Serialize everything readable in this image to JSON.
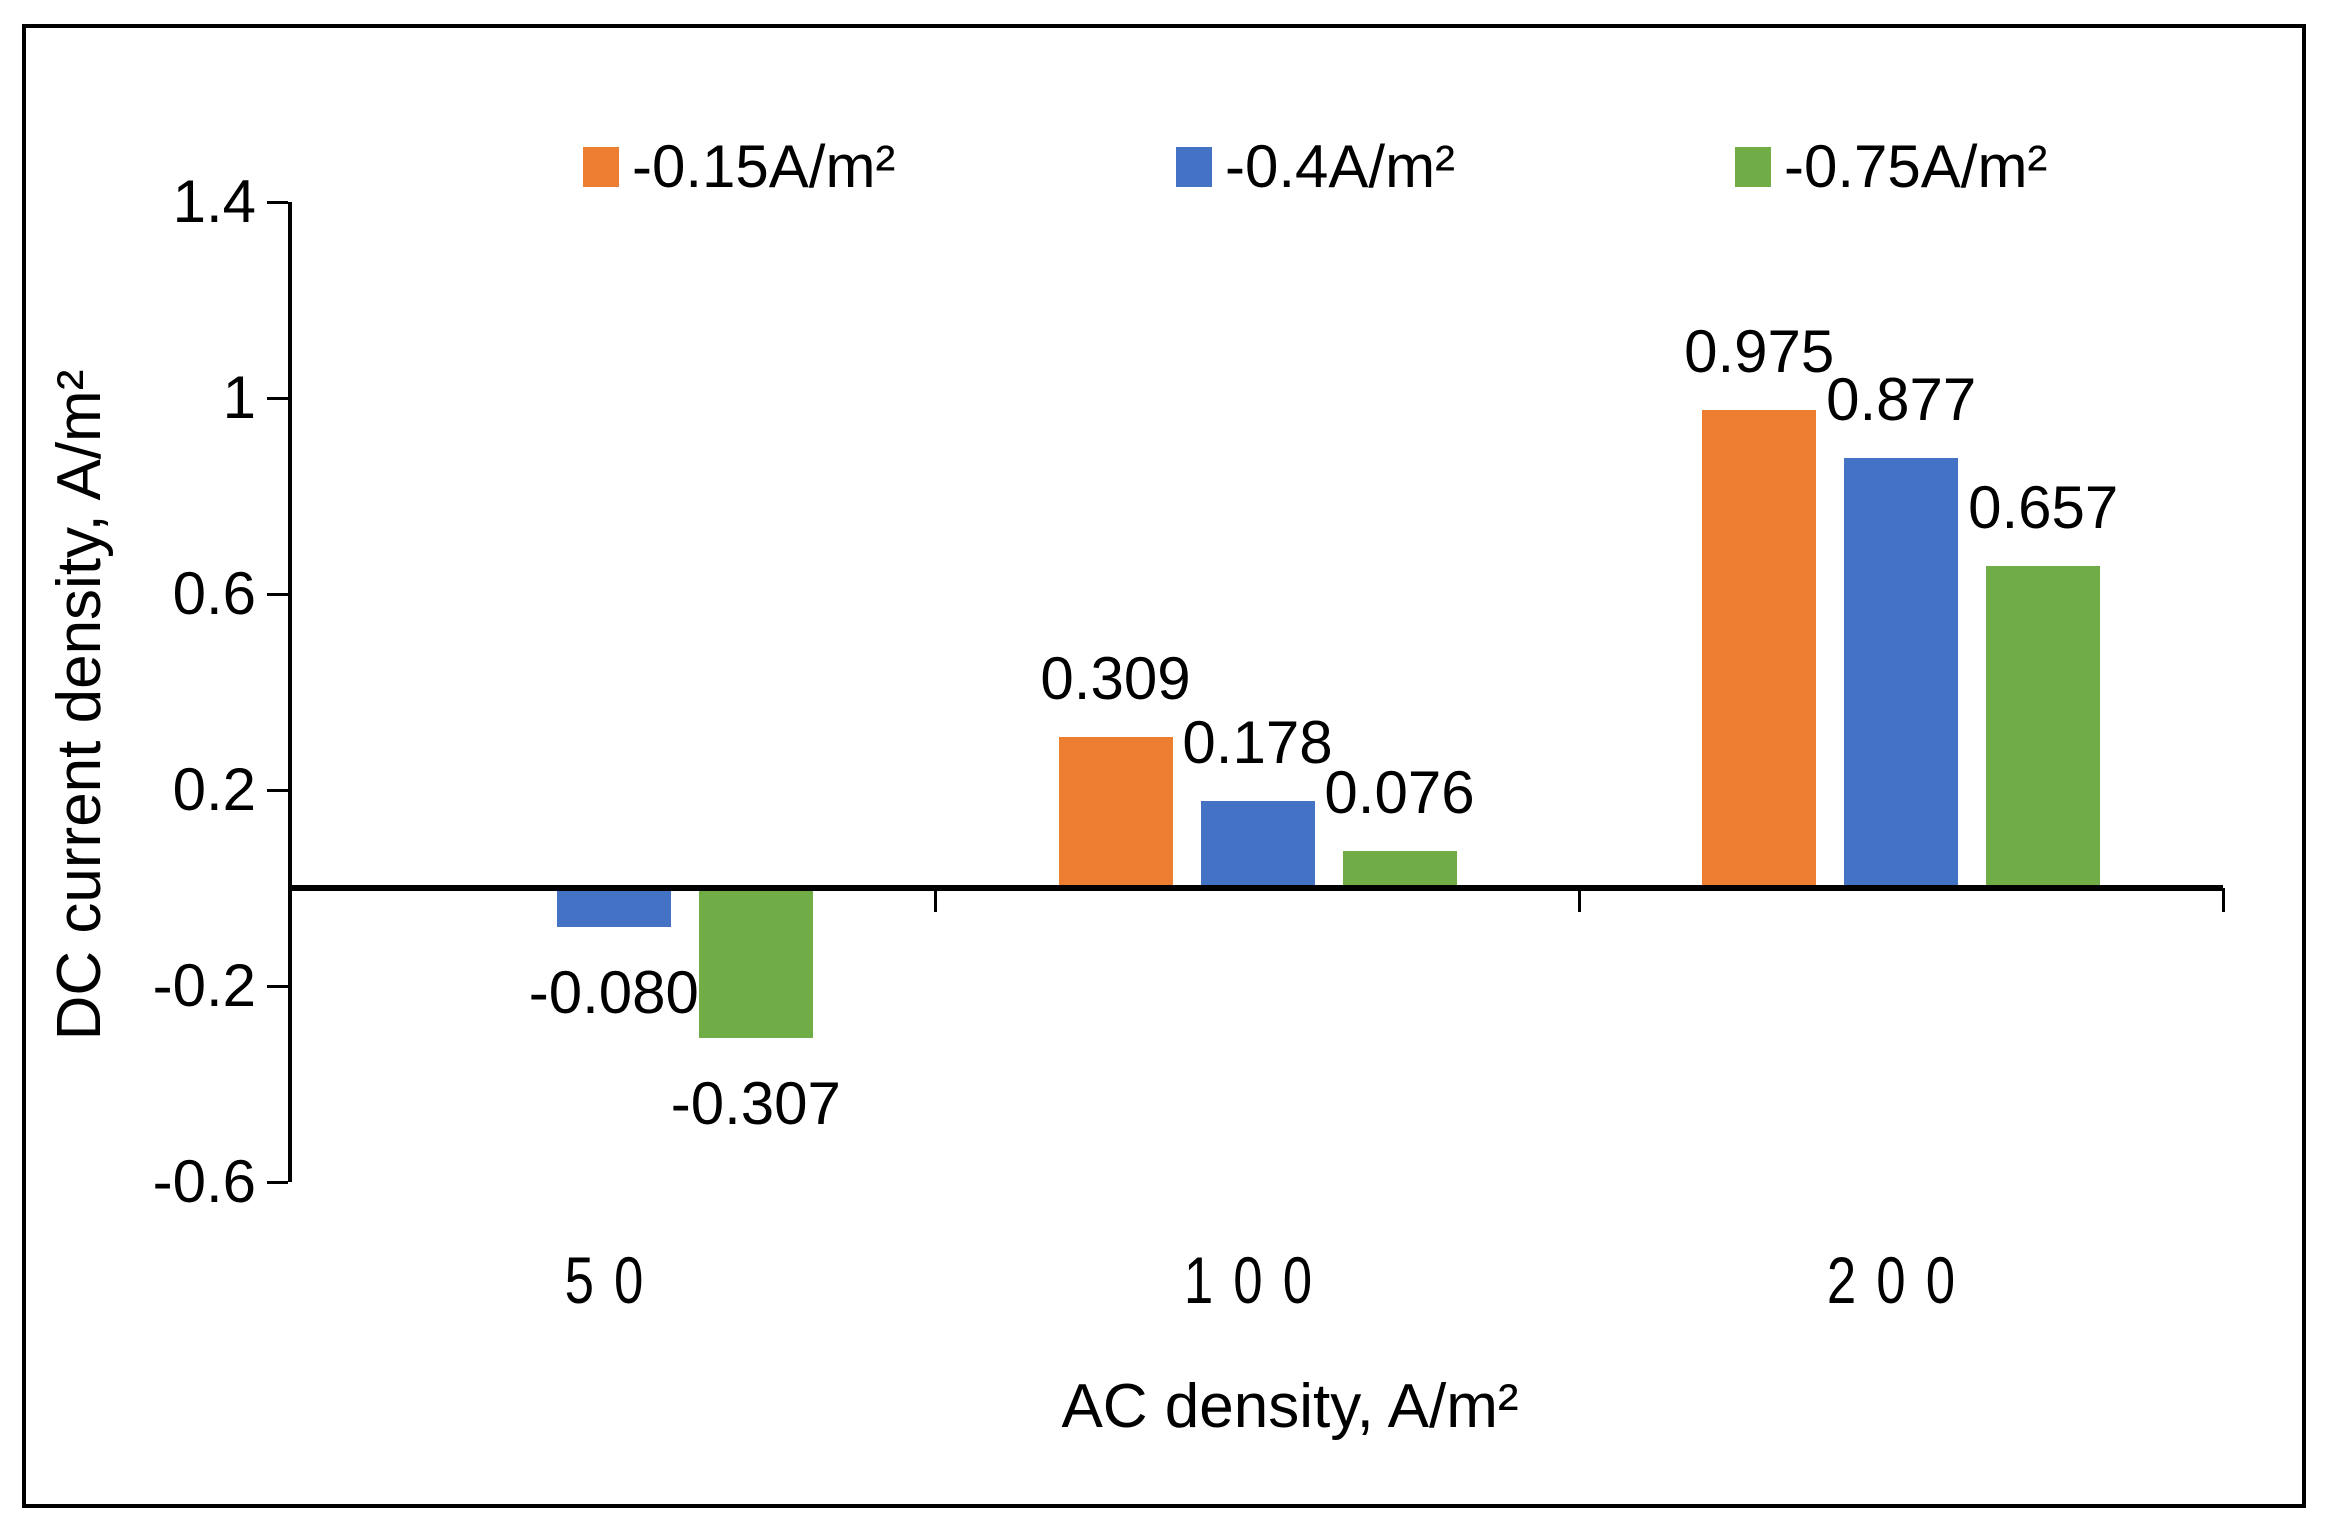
{
  "figure": {
    "background": "#ffffff",
    "border_color": "#000000",
    "axis_color": "#000000",
    "text_color": "#000000"
  },
  "chart_data": {
    "type": "bar",
    "title": "",
    "xlabel": "AC density, A/m²",
    "ylabel": "DC current density, A/m²",
    "categories": [
      "50",
      "100",
      "200"
    ],
    "series": [
      {
        "name": "-0.15A/m²",
        "color": "#ED7D31",
        "values": [
          null,
          0.309,
          0.975
        ],
        "labels": [
          "",
          "0.309",
          "0.975"
        ]
      },
      {
        "name": "-0.4A/m²",
        "color": "#4472C4",
        "values": [
          -0.08,
          0.178,
          0.877
        ],
        "labels": [
          "-0.080",
          "0.178",
          "0.877"
        ]
      },
      {
        "name": "-0.75A/m²",
        "color": "#70AD47",
        "values": [
          -0.307,
          0.076,
          0.657
        ],
        "labels": [
          "-0.307",
          "0.076",
          "0.657"
        ]
      }
    ],
    "y_ticks": [
      "1.4",
      "1",
      "0.6",
      "0.2",
      "-0.2",
      "-0.6"
    ],
    "y_tick_values": [
      1.4,
      1,
      0.6,
      0.2,
      -0.2,
      -0.6
    ],
    "ylim": [
      -0.6,
      1.4
    ],
    "grid": false,
    "legend_position": "top"
  }
}
